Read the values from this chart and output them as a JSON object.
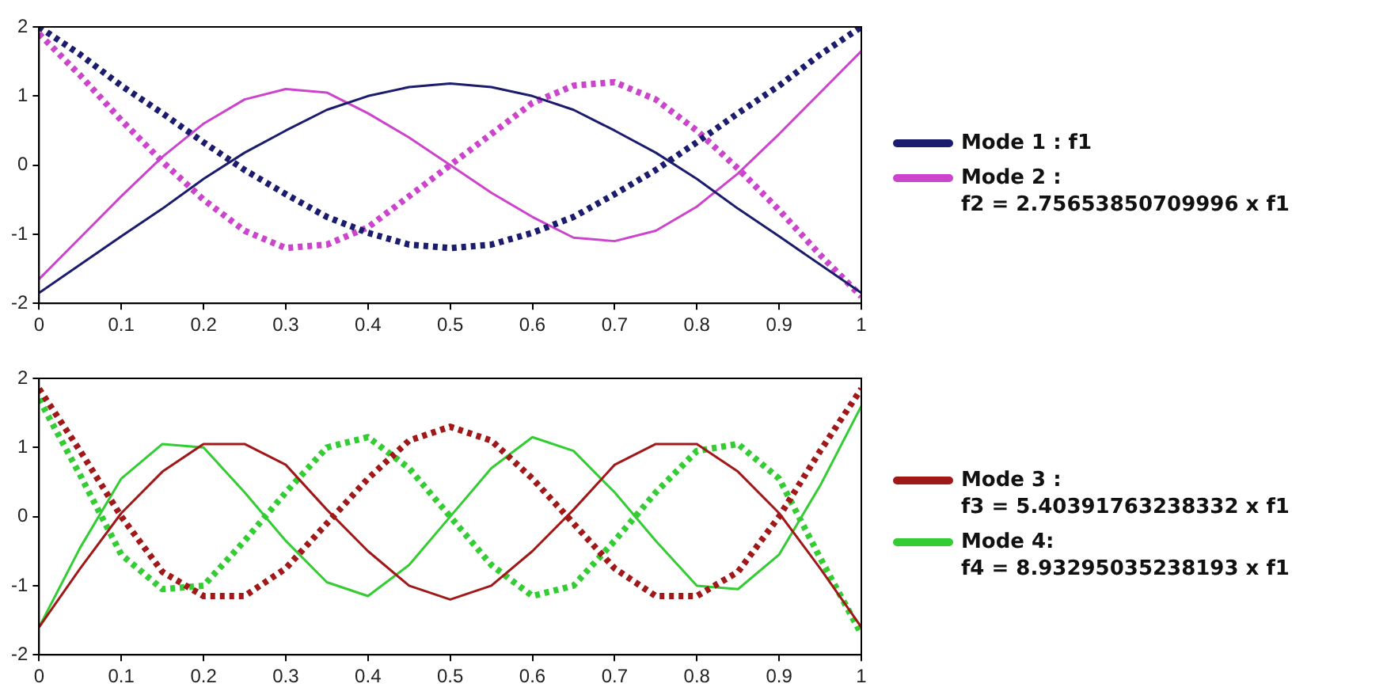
{
  "chart_data": [
    {
      "type": "line",
      "x": [
        0,
        0.05,
        0.1,
        0.15,
        0.2,
        0.25,
        0.3,
        0.35,
        0.4,
        0.45,
        0.5,
        0.55,
        0.6,
        0.65,
        0.7,
        0.75,
        0.8,
        0.85,
        0.9,
        0.95,
        1
      ],
      "xlim": [
        0,
        1
      ],
      "xticks": [
        0,
        0.1,
        0.2,
        0.3,
        0.4,
        0.5,
        0.6,
        0.7,
        0.8,
        0.9,
        1
      ],
      "ylim": [
        -2,
        2
      ],
      "yticks": [
        -2,
        -1,
        0,
        1,
        2
      ],
      "legend": "right",
      "series": [
        {
          "name": "Mode 1 : f1",
          "color": "#1c1c6e",
          "line_style": "solid",
          "values": [
            -1.85,
            -1.44,
            -1.03,
            -0.63,
            -0.2,
            0.18,
            0.5,
            0.8,
            1.0,
            1.13,
            1.18,
            1.13,
            1.0,
            0.8,
            0.5,
            0.18,
            -0.2,
            -0.63,
            -1.03,
            -1.44,
            -1.85
          ]
        },
        {
          "color": "#1c1c6e",
          "line_style": "dotted",
          "values": [
            2,
            1.6,
            1.15,
            0.75,
            0.33,
            -0.07,
            -0.42,
            -0.75,
            -0.98,
            -1.15,
            -1.2,
            -1.15,
            -0.98,
            -0.75,
            -0.42,
            -0.07,
            0.33,
            0.75,
            1.15,
            1.6,
            2
          ]
        },
        {
          "name": "Mode 2 :\nf2 = 2.75653850709996 x f1",
          "color": "#cc44cc",
          "line_style": "solid",
          "values": [
            -1.65,
            -1.05,
            -0.45,
            0.12,
            0.6,
            0.95,
            1.1,
            1.05,
            0.75,
            0.4,
            0,
            -0.4,
            -0.75,
            -1.05,
            -1.1,
            -0.95,
            -0.6,
            -0.12,
            0.45,
            1.05,
            1.65
          ]
        },
        {
          "color": "#cc44cc",
          "line_style": "dotted",
          "values": [
            1.9,
            1.3,
            0.65,
            0.05,
            -0.5,
            -0.95,
            -1.2,
            -1.15,
            -0.9,
            -0.45,
            0,
            0.45,
            0.9,
            1.15,
            1.2,
            0.95,
            0.5,
            -0.05,
            -0.65,
            -1.3,
            -1.9
          ]
        }
      ]
    },
    {
      "type": "line",
      "x": [
        0,
        0.05,
        0.1,
        0.15,
        0.2,
        0.25,
        0.3,
        0.35,
        0.4,
        0.45,
        0.5,
        0.55,
        0.6,
        0.65,
        0.7,
        0.75,
        0.8,
        0.85,
        0.9,
        0.95,
        1
      ],
      "xlim": [
        0,
        1
      ],
      "xticks": [
        0,
        0.1,
        0.2,
        0.3,
        0.4,
        0.5,
        0.6,
        0.7,
        0.8,
        0.9,
        1
      ],
      "ylim": [
        -2,
        2
      ],
      "yticks": [
        -2,
        -1,
        0,
        1,
        2
      ],
      "legend": "right",
      "series": [
        {
          "name": "Mode 3 :\nf3 = 5.40391763238332 x f1",
          "color": "#a01818",
          "line_style": "solid",
          "values": [
            -1.6,
            -0.75,
            0.05,
            0.65,
            1.05,
            1.05,
            0.75,
            0.1,
            -0.5,
            -1.0,
            -1.2,
            -1.0,
            -0.5,
            0.1,
            0.75,
            1.05,
            1.05,
            0.65,
            0.05,
            -0.75,
            -1.6
          ]
        },
        {
          "color": "#a01818",
          "line_style": "dotted",
          "values": [
            1.85,
            0.95,
            0.0,
            -0.8,
            -1.15,
            -1.15,
            -0.75,
            -0.1,
            0.55,
            1.1,
            1.3,
            1.1,
            0.55,
            -0.1,
            -0.75,
            -1.15,
            -1.15,
            -0.8,
            0.0,
            0.95,
            1.85
          ]
        },
        {
          "name": "Mode 4:\nf4 = 8.93295035238193 x f1",
          "color": "#33cc33",
          "line_style": "solid",
          "values": [
            -1.6,
            -0.45,
            0.55,
            1.05,
            1.0,
            0.35,
            -0.35,
            -0.95,
            -1.15,
            -0.7,
            0,
            0.7,
            1.15,
            0.95,
            0.35,
            -0.35,
            -1.0,
            -1.05,
            -0.55,
            0.45,
            1.6
          ]
        },
        {
          "color": "#33cc33",
          "line_style": "dotted",
          "values": [
            1.7,
            0.6,
            -0.55,
            -1.05,
            -1.0,
            -0.35,
            0.35,
            1.0,
            1.15,
            0.7,
            0,
            -0.7,
            -1.15,
            -1.0,
            -0.35,
            0.35,
            0.95,
            1.05,
            0.55,
            -0.6,
            -1.7
          ]
        }
      ]
    }
  ]
}
